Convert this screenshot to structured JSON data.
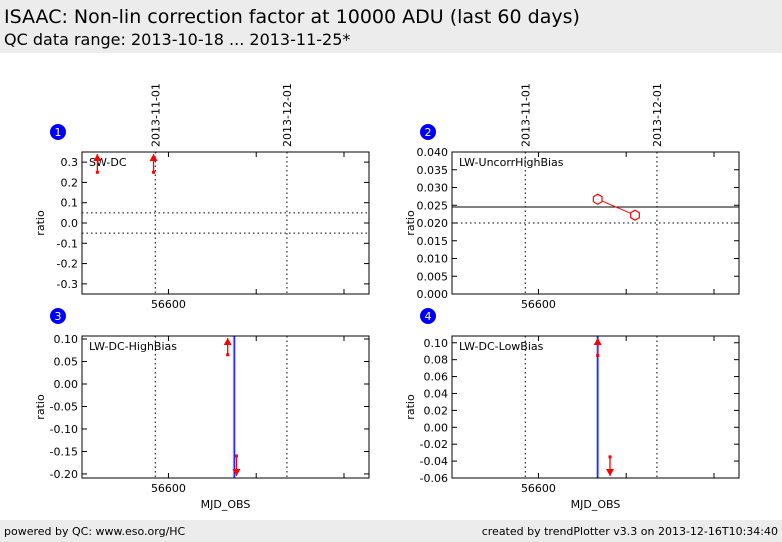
{
  "header": {
    "title": "ISAAC: Non-lin correction factor at 10000 ADU (last 60 days)",
    "subtitle": "QC data range: 2013-10-18 ... 2013-11-25*"
  },
  "footer": {
    "left": "powered by QC: www.eso.org/HC",
    "right": "created by trendPlotter v3.3 on 2013-12-16T10:34:40"
  },
  "colors": {
    "data": "#ff0000",
    "event": "#0000ff",
    "badge": "#0000ff"
  },
  "chart_data": [
    {
      "type": "scatter",
      "number": "1",
      "label": "SW-DC",
      "ylabel": "ratio",
      "xlabel": "",
      "xlim": [
        56580.3,
        56645.7
      ],
      "ylim": [
        -0.35,
        0.35
      ],
      "yticks": [
        "-0.3",
        "-0.2",
        "-0.1",
        "0.0",
        "0.1",
        "0.2",
        "0.3"
      ],
      "xticks": [
        "56600"
      ],
      "xtick_values": [
        56600
      ],
      "date_labels": [
        "2013-11-01",
        "2013-12-01"
      ],
      "date_values": [
        56597,
        56627
      ],
      "hlines_dotted": [
        0.05,
        -0.05
      ],
      "hlines_solid": [],
      "events": [],
      "arrows": [
        {
          "x": 56583.8,
          "y": 0.25,
          "dir": "up"
        },
        {
          "x": 56596.6,
          "y": 0.25,
          "dir": "up"
        }
      ],
      "points": []
    },
    {
      "type": "line",
      "number": "2",
      "label": "LW-UncorrHighBias",
      "ylabel": "ratio",
      "xlabel": "",
      "xlim": [
        56580.3,
        56645.7
      ],
      "ylim": [
        0,
        0.04
      ],
      "yticks": [
        "0.000",
        "0.005",
        "0.010",
        "0.015",
        "0.020",
        "0.025",
        "0.030",
        "0.035",
        "0.040"
      ],
      "xticks": [
        "56600"
      ],
      "xtick_values": [
        56600
      ],
      "date_labels": [
        "2013-11-01",
        "2013-12-01"
      ],
      "date_values": [
        56597,
        56627
      ],
      "hlines_dotted": [
        0.02
      ],
      "hlines_solid": [
        0.0245
      ],
      "events": [],
      "arrows": [],
      "points": [
        {
          "x": 56613.5,
          "y": 0.0267
        },
        {
          "x": 56622,
          "y": 0.0222
        }
      ]
    },
    {
      "type": "scatter",
      "number": "3",
      "label": "LW-DC-HighBias",
      "ylabel": "ratio",
      "xlabel": "MJD_OBS",
      "xlim": [
        56580.3,
        56645.7
      ],
      "ylim": [
        -0.209,
        0.1067
      ],
      "yticks": [
        "-0.20",
        "-0.15",
        "-0.10",
        "-0.05",
        "0.00",
        "0.05",
        "0.10"
      ],
      "xticks": [
        "56600"
      ],
      "xtick_values": [
        56600
      ],
      "date_labels": [],
      "date_values": [
        56597,
        56627
      ],
      "hlines_dotted": [],
      "hlines_solid": [],
      "events": [
        56615
      ],
      "arrows": [
        {
          "x": 56613.5,
          "y": 0.065,
          "dir": "up"
        },
        {
          "x": 56615.5,
          "y": -0.16,
          "dir": "down"
        }
      ],
      "points": []
    },
    {
      "type": "scatter",
      "number": "4",
      "label": "LW-DC-LowBias",
      "ylabel": "ratio",
      "xlabel": "MJD_OBS",
      "xlim": [
        56580.3,
        56645.7
      ],
      "ylim": [
        -0.06,
        0.108
      ],
      "yticks": [
        "-0.06",
        "-0.04",
        "-0.02",
        "0.00",
        "0.02",
        "0.04",
        "0.06",
        "0.08",
        "0.10"
      ],
      "xticks": [
        "56600"
      ],
      "xtick_values": [
        56600
      ],
      "date_labels": [],
      "date_values": [
        56597,
        56627
      ],
      "hlines_dotted": [],
      "hlines_solid": [],
      "events": [
        56613.5
      ],
      "arrows": [
        {
          "x": 56613.5,
          "y": 0.085,
          "dir": "up"
        },
        {
          "x": 56616.3,
          "y": -0.035,
          "dir": "down"
        }
      ],
      "points": []
    }
  ]
}
